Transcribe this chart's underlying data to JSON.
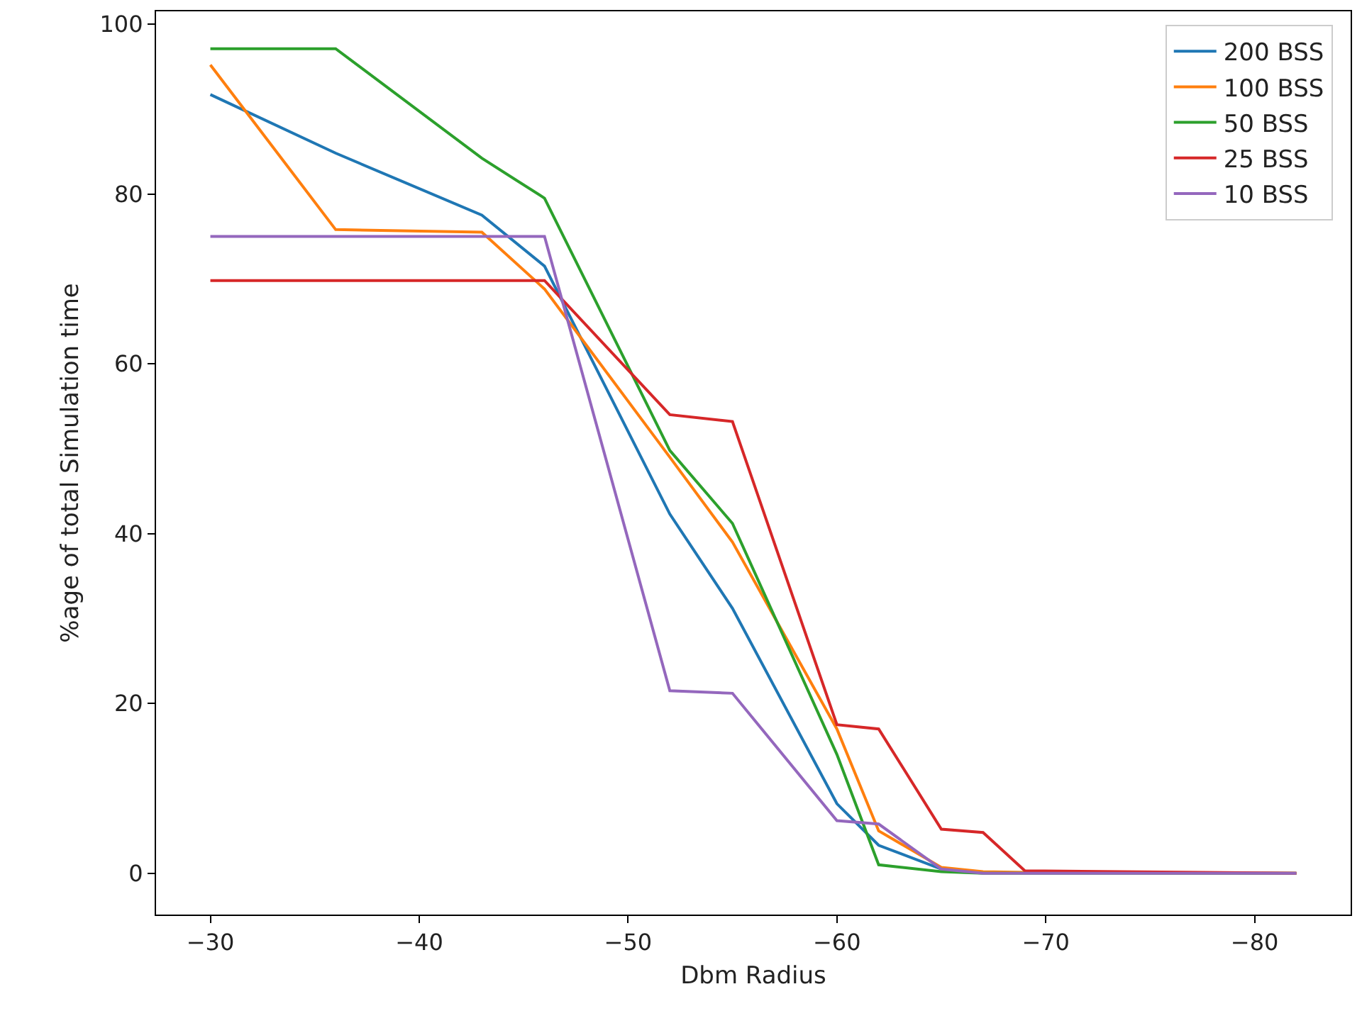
{
  "chart_data": {
    "type": "line",
    "xlabel": "Dbm Radius",
    "ylabel": "%age of total Simulation time",
    "x": [
      -30,
      -36,
      -43,
      -46,
      -52,
      -55,
      -60,
      -62,
      -65,
      -67,
      -69,
      -82
    ],
    "series": [
      {
        "name": "200 BSS",
        "color": "#1f77b4",
        "values": [
          91.7,
          84.8,
          77.5,
          71.5,
          42.3,
          31.2,
          8.2,
          3.3,
          0.5,
          0.1,
          null,
          null
        ]
      },
      {
        "name": "100 BSS",
        "color": "#ff7f0e",
        "values": [
          95.2,
          75.8,
          75.5,
          68.8,
          49,
          39,
          17,
          5,
          0.7,
          0.2,
          0.1,
          0
        ]
      },
      {
        "name": "50 BSS",
        "color": "#2ca02c",
        "values": [
          97.1,
          97.1,
          84.2,
          79.5,
          49.8,
          41.2,
          14,
          1,
          0.2,
          0,
          0,
          0
        ]
      },
      {
        "name": "25 BSS",
        "color": "#d62728",
        "values": [
          69.8,
          69.8,
          69.8,
          69.8,
          54,
          53.2,
          17.5,
          17,
          5.2,
          4.8,
          0.3,
          0
        ]
      },
      {
        "name": "10 BSS",
        "color": "#9467bd",
        "values": [
          75,
          75,
          75,
          75,
          21.5,
          21.2,
          6.2,
          5.8,
          0.5,
          0,
          0,
          0
        ]
      }
    ],
    "xlim": [
      -27.4,
      -84.6
    ],
    "xticks": [
      {
        "value": -30,
        "label": "−30"
      },
      {
        "value": -40,
        "label": "−40"
      },
      {
        "value": -50,
        "label": "−50"
      },
      {
        "value": -60,
        "label": "−60"
      },
      {
        "value": -70,
        "label": "−70"
      },
      {
        "value": -80,
        "label": "−80"
      }
    ],
    "ylim": [
      -4.86,
      101.5
    ],
    "yticks": [
      0,
      20,
      40,
      60,
      80,
      100
    ],
    "grid": false,
    "legend": "top right",
    "marker": "none",
    "line_style": "solid"
  }
}
